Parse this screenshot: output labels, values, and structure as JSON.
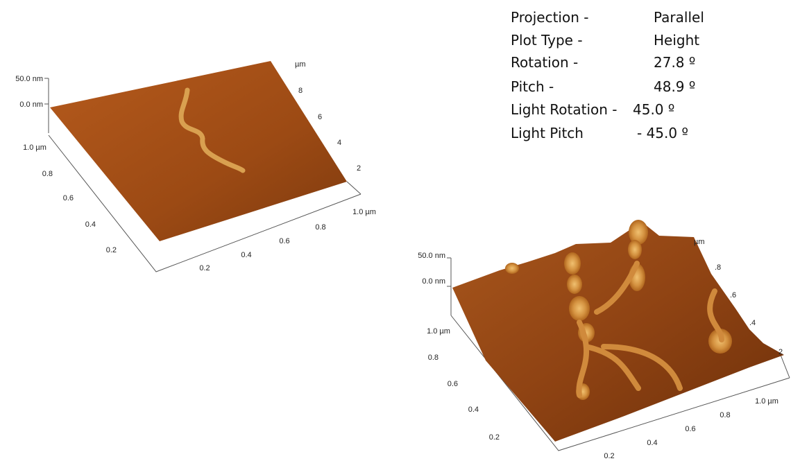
{
  "plots": [
    {
      "z_axis": [
        "50.0 nm",
        "0.0 nm"
      ],
      "left_axis": [
        "1.0 µm",
        "0.8",
        "0.6",
        "0.4",
        "0.2"
      ],
      "front_axis": [
        "0.2",
        "0.4",
        "0.6",
        "0.8",
        "1.0 µm"
      ],
      "back_axis": [
        "µm",
        "8",
        "6",
        "4",
        "2"
      ]
    },
    {
      "z_axis": [
        "50.0 nm",
        "0.0 nm"
      ],
      "left_axis": [
        "1.0 µm",
        "0.8",
        "0.6",
        "0.4",
        "0.2"
      ],
      "front_axis": [
        "0.2",
        "0.4",
        "0.6",
        "0.8",
        "1.0 µm"
      ],
      "back_axis": [
        "µm",
        ".8",
        ".6",
        ".4",
        "2"
      ]
    }
  ],
  "settings": {
    "rows": [
      [
        "Projection -",
        "Parallel"
      ],
      [
        "Plot Type -",
        "Height"
      ],
      [
        "Rotation -",
        "27.8 º"
      ],
      [
        "Pitch -",
        "48.9 º"
      ],
      [
        "Light Rotation -",
        "45.0 º"
      ],
      [
        "Light Pitch",
        "- 45.0 º"
      ]
    ]
  }
}
